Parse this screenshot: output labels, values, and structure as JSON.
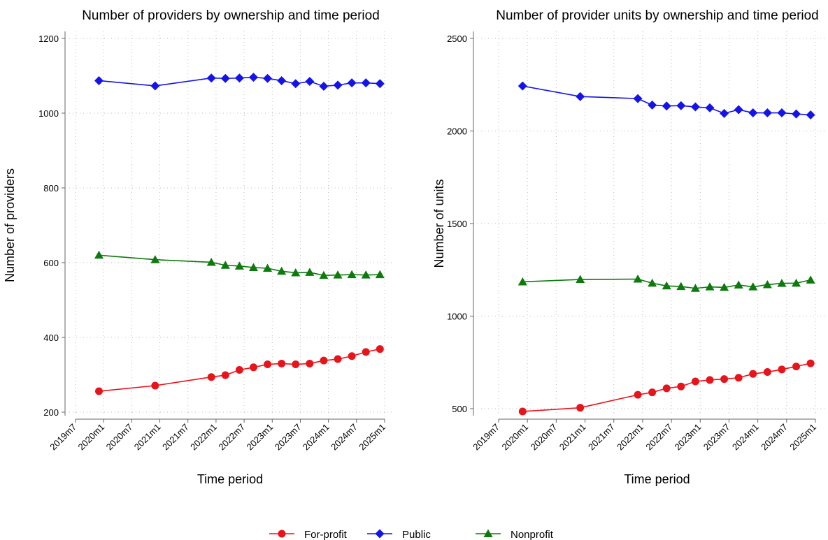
{
  "chart_data": [
    {
      "type": "line",
      "title": "Number of providers by ownership and time period",
      "x_label": "Time period",
      "y_label": "Number of providers",
      "x": [
        "2019m12",
        "2020m12",
        "2021m12",
        "2022m3",
        "2022m6",
        "2022m9",
        "2022m12",
        "2023m3",
        "2023m6",
        "2023m9",
        "2023m12",
        "2024m3",
        "2024m6",
        "2024m9",
        "2024m12"
      ],
      "xlim": [
        "2019m7",
        "2025m1"
      ],
      "xticks": [
        "2019m7",
        "2020m1",
        "2020m7",
        "2021m1",
        "2021m7",
        "2022m1",
        "2022m7",
        "2023m1",
        "2023m7",
        "2024m1",
        "2024m7",
        "2025m1"
      ],
      "ylim": [
        200,
        1200
      ],
      "yticks": [
        200,
        400,
        600,
        800,
        1000,
        1200
      ],
      "grid": true,
      "series": [
        {
          "name": "For-profit",
          "color": "#e8141b",
          "marker": "circle",
          "values": [
            256,
            271,
            294,
            299,
            313,
            320,
            328,
            330,
            328,
            330,
            338,
            342,
            350,
            361,
            369
          ]
        },
        {
          "name": "Public",
          "color": "#1414e8",
          "marker": "diamond",
          "values": [
            1087,
            1073,
            1094,
            1093,
            1094,
            1096,
            1093,
            1087,
            1079,
            1085,
            1072,
            1075,
            1081,
            1081,
            1079
          ]
        },
        {
          "name": "Nonprofit",
          "color": "#0e7a0e",
          "marker": "triangle",
          "values": [
            620,
            608,
            601,
            593,
            591,
            587,
            585,
            577,
            573,
            574,
            566,
            567,
            568,
            567,
            568
          ]
        }
      ]
    },
    {
      "type": "line",
      "title": "Number of provider units by ownership and time period",
      "x_label": "Time period",
      "y_label": "Number of units",
      "x": [
        "2019m12",
        "2020m12",
        "2021m12",
        "2022m3",
        "2022m6",
        "2022m9",
        "2022m12",
        "2023m3",
        "2023m6",
        "2023m9",
        "2023m12",
        "2024m3",
        "2024m6",
        "2024m9",
        "2024m12"
      ],
      "xlim": [
        "2019m7",
        "2025m1"
      ],
      "xticks": [
        "2019m7",
        "2020m1",
        "2020m7",
        "2021m1",
        "2021m7",
        "2022m1",
        "2022m7",
        "2023m1",
        "2023m7",
        "2024m1",
        "2024m7",
        "2025m1"
      ],
      "ylim": [
        500,
        2500
      ],
      "yticks": [
        500,
        1000,
        1500,
        2000,
        2500
      ],
      "grid": true,
      "series": [
        {
          "color": "#e8141b",
          "marker": "circle",
          "values": [
            485,
            505,
            575,
            588,
            610,
            620,
            647,
            655,
            660,
            667,
            688,
            698,
            712,
            728,
            745
          ]
        },
        {
          "color": "#1414e8",
          "marker": "diamond",
          "values": [
            2243,
            2186,
            2175,
            2140,
            2135,
            2137,
            2130,
            2125,
            2095,
            2115,
            2098,
            2098,
            2098,
            2092,
            2087
          ]
        },
        {
          "color": "#0e7a0e",
          "marker": "triangle",
          "values": [
            1185,
            1198,
            1200,
            1178,
            1163,
            1160,
            1150,
            1158,
            1155,
            1168,
            1158,
            1170,
            1177,
            1178,
            1195
          ]
        }
      ]
    }
  ]
}
